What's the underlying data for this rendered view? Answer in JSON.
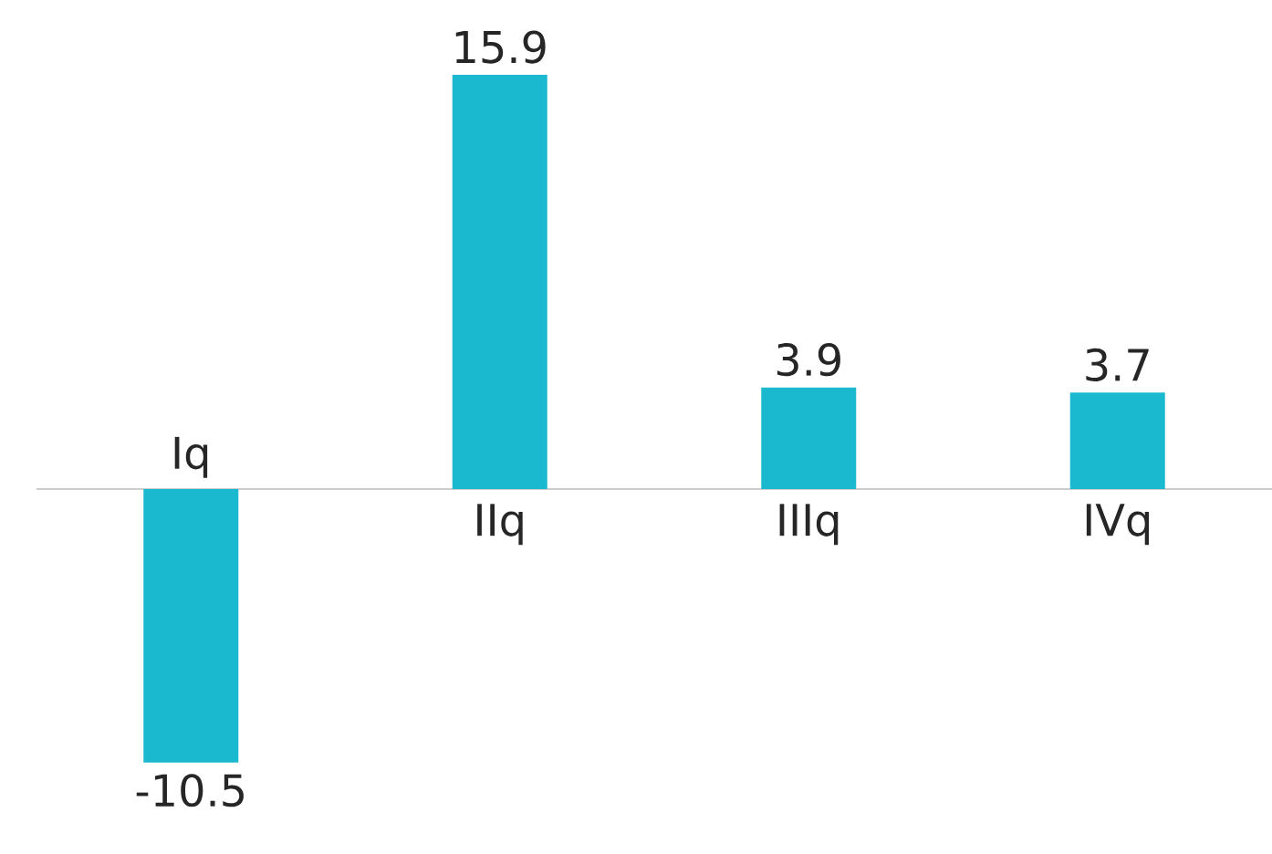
{
  "chart_data": {
    "type": "bar",
    "categories": [
      "Iq",
      "IIq",
      "IIIq",
      "IVq"
    ],
    "values": [
      -10.5,
      15.9,
      3.9,
      3.7
    ],
    "color": "#1ab9cf",
    "data_labels": true
  }
}
